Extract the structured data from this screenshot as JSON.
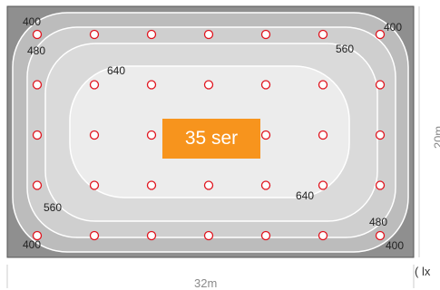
{
  "colors": {
    "outer_zone": "#8f8f8f",
    "zone_400": "#bcbcbc",
    "zone_480": "#cfcfcf",
    "zone_560": "#dadada",
    "zone_640": "#ececec",
    "contour_line": "#ffffff",
    "luminaire_stroke": "#e0141e",
    "badge": "#f7941d"
  },
  "contour_labels": {
    "tl_400": "400",
    "tl_480": "480",
    "top_640": "640",
    "tr_400": "400",
    "tr_560": "560",
    "bl_560": "560",
    "bl_400": "400",
    "br_640": "640",
    "br_480": "480",
    "br_400": "400"
  },
  "badge": {
    "text": "35 ser"
  },
  "dimensions": {
    "width": "32m",
    "height": "20m",
    "unit": "( lx"
  },
  "luminaire_grid": {
    "rows": 5,
    "cols": 7,
    "icon": "luminaire-circle-icon"
  }
}
